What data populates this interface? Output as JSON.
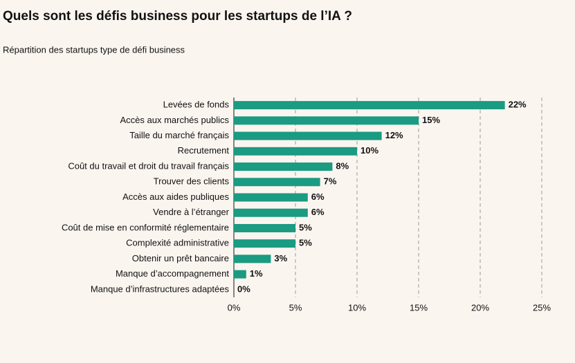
{
  "chart_data": {
    "type": "barh",
    "title": "Quels sont les défis business pour les startups de l’IA ?",
    "subtitle": "Répartition des startups type de défi business",
    "categories": [
      "Levées de fonds",
      "Accès aux marchés publics",
      "Taille du marché français",
      "Recrutement",
      "Coût du travail et droit du travail français",
      "Trouver des clients",
      "Accès aux aides publiques",
      "Vendre à l’étranger",
      "Coût de mise en conformité réglementaire",
      "Complexité administrative",
      "Obtenir un prêt bancaire",
      "Manque d’accompagnement",
      "Manque d’infrastructures adaptées"
    ],
    "values": [
      22,
      15,
      12,
      10,
      8,
      7,
      6,
      6,
      5,
      5,
      3,
      1,
      0
    ],
    "value_labels": [
      "22%",
      "15%",
      "12%",
      "10%",
      "8%",
      "7%",
      "6%",
      "6%",
      "5%",
      "5%",
      "3%",
      "1%",
      "0%"
    ],
    "color": "#1a9b82",
    "xlim": [
      0,
      25
    ],
    "xticks": [
      {
        "value": 0,
        "label": "0%"
      },
      {
        "value": 5,
        "label": "5%"
      },
      {
        "value": 10,
        "label": "10%"
      },
      {
        "value": 15,
        "label": "15%"
      },
      {
        "value": 20,
        "label": "20%"
      },
      {
        "value": 25,
        "label": "25%"
      }
    ],
    "grid": true
  }
}
